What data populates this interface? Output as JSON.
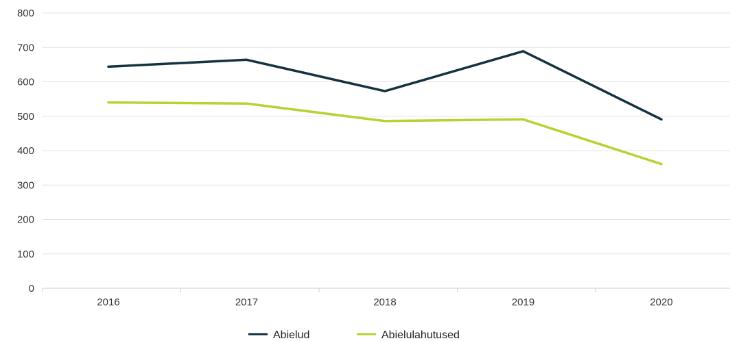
{
  "chart_data": {
    "type": "line",
    "categories": [
      "2016",
      "2017",
      "2018",
      "2019",
      "2020"
    ],
    "ylim": [
      0,
      800
    ],
    "yticks": [
      "0",
      "100",
      "200",
      "300",
      "400",
      "500",
      "600",
      "700",
      "800"
    ],
    "grid": true,
    "legend_position": "bottom",
    "series": [
      {
        "name": "Abielud",
        "color": "#14323f",
        "values": [
          644,
          664,
          573,
          689,
          491
        ]
      },
      {
        "name": "Abielulahutused",
        "color": "#b5d334",
        "values": [
          540,
          537,
          486,
          491,
          361
        ]
      }
    ]
  }
}
